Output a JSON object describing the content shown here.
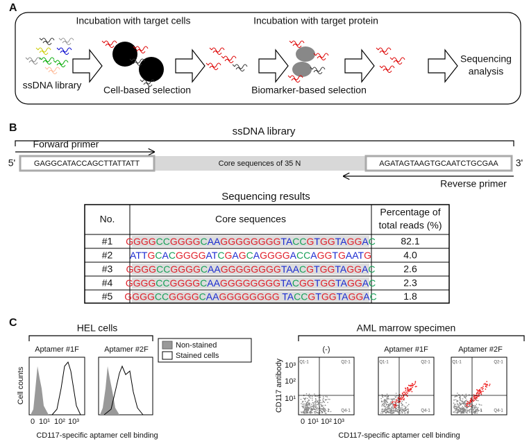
{
  "panels": {
    "A": {
      "label": "A",
      "step1": "Incubation with target cells",
      "step2": "Incubation with target protein",
      "library": "ssDNA library",
      "cell_selection": "Cell-based selection",
      "biomarker_selection": "Biomarker-based selection",
      "sequencing": [
        "Sequencing",
        "analysis"
      ]
    },
    "B": {
      "label": "B",
      "title": "ssDNA library",
      "forward": "Forward primer",
      "reverse": "Reverse primer",
      "five": "5'",
      "three": "3'",
      "forward_seq": "GAGGCATACCAGCTTATTATT",
      "core": "Core sequences of 35 N",
      "reverse_seq": "AGATAGTAAGTGCAATCTGCGAA",
      "table_title": "Sequencing results",
      "table": {
        "header": [
          "No.",
          "Core sequences",
          [
            "Percentage of",
            "total reads (%)"
          ]
        ],
        "rows": [
          [
            "#1",
            "GGGGCCGGGGCAAGGGGGGGGTACCGTGGTAGGAC",
            "82.1"
          ],
          [
            "#2",
            "ATTGCACGGGGATCGAGCAGGGGACCAGGTGAATG",
            "4.0"
          ],
          [
            "#3",
            "GGGGCCGGGGCAAGGGGGGGGTAACGTGGTAGGAC",
            "2.6"
          ],
          [
            "#4",
            "GGGGCCGGGGCAAGGGGGGGGTACGGTGGTAGGAC",
            "2.3"
          ],
          [
            "#5",
            "GGGGCCGGGGCAAGGGGGGGG TACCGTGGTAGGAC",
            "1.8"
          ]
        ]
      }
    },
    "C": {
      "label": "C",
      "hel": "HEL cells",
      "aml": "AML marrow specimen",
      "apt1": "Aptamer #1F",
      "apt2": "Aptamer #2F",
      "neg": "(-)",
      "legend": [
        "Non-stained",
        "Stained cells"
      ],
      "y_hel": "Cell counts",
      "y_aml": "CD117 antibody",
      "x_label": "CD117-specific aptamer cell binding",
      "xticks": [
        "0",
        "10¹",
        "10²",
        "10³"
      ],
      "yticks": [
        "10³",
        "10²",
        "10¹"
      ],
      "quadrants": [
        "Q1-1",
        "Q2-1",
        "Q3-1",
        "Q4-1"
      ]
    }
  }
}
